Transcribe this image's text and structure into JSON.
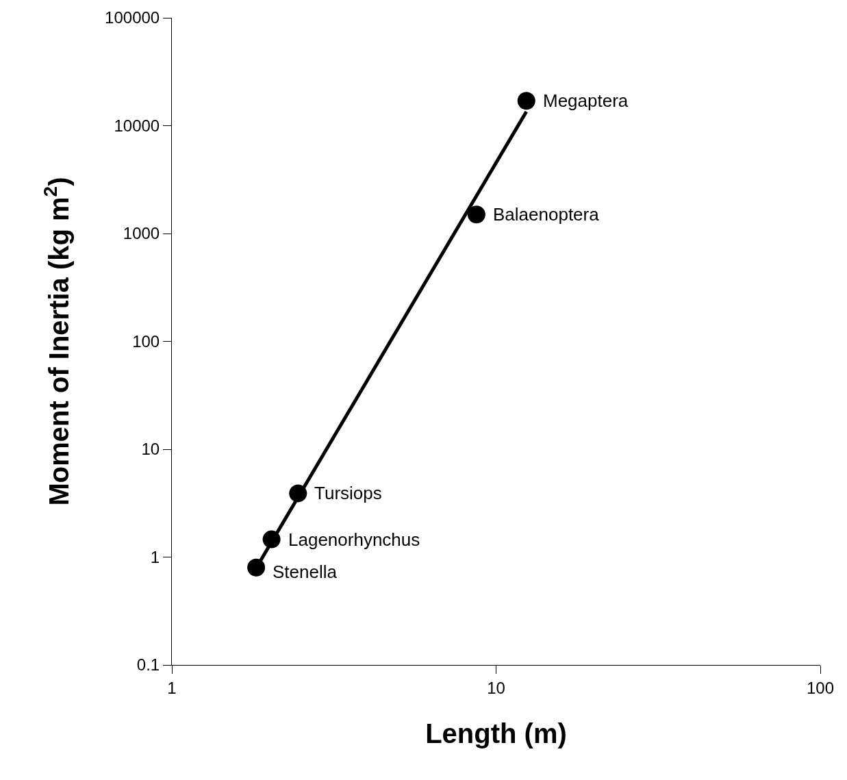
{
  "chart_data": {
    "type": "scatter",
    "xlabel": "Length (m)",
    "ylabel": "Moment of Inertia (kg m$^{2}$)",
    "log": "xy",
    "xlim": [
      1,
      100
    ],
    "xticks": [
      1,
      10,
      100
    ],
    "ylim": [
      0.1,
      100000
    ],
    "yticks": [
      0.1,
      1,
      10,
      100,
      1000,
      10000,
      100000
    ],
    "series": [
      {
        "color": "#000000",
        "marker": "circle",
        "x": [
          1.82,
          2.03,
          2.45,
          8.7,
          12.4
        ],
        "values": [
          0.8,
          1.46,
          3.9,
          1500,
          17000
        ]
      },
      {
        "type": "line",
        "color": "#000000",
        "line_style": "solid",
        "x": [
          1.8,
          12.4
        ],
        "values": [
          0.75,
          13500
        ]
      }
    ],
    "annotations": [
      {
        "text": "Stenella",
        "x": 1.82,
        "y": 0.8
      },
      {
        "text": "Lagenorhynchus",
        "x": 2.03,
        "y": 1.46
      },
      {
        "text": "Tursiops",
        "x": 2.45,
        "y": 3.9
      },
      {
        "text": "Balaenoptera",
        "x": 8.7,
        "y": 1500
      },
      {
        "text": "Megaptera",
        "x": 12.4,
        "y": 17000
      }
    ]
  }
}
